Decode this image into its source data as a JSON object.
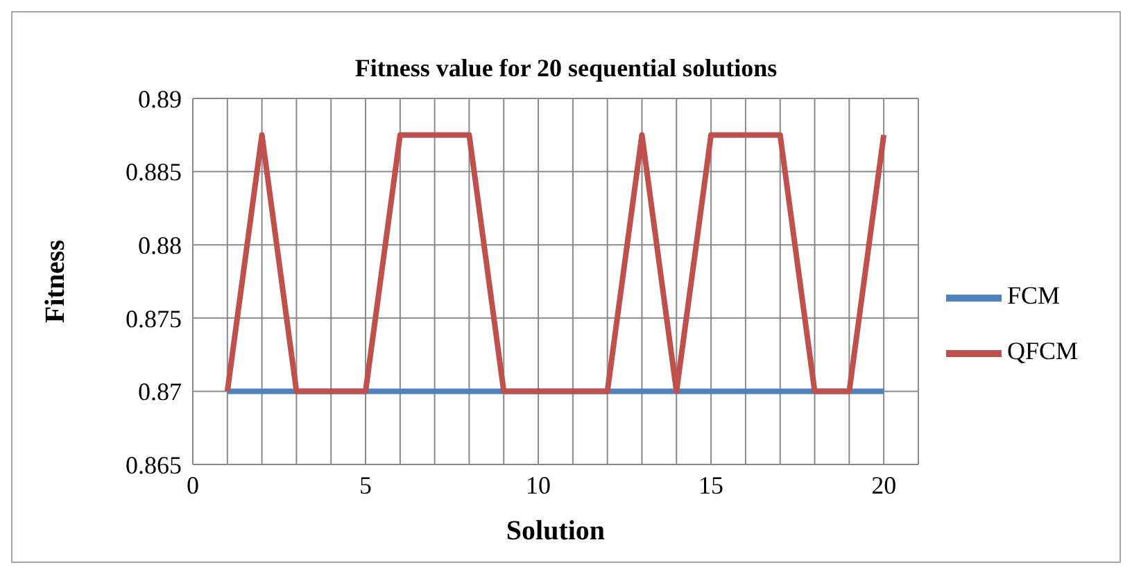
{
  "chart_data": {
    "type": "line",
    "title": "Fitness value for 20 sequential solutions",
    "xlabel": "Solution",
    "ylabel": "Fitness",
    "x": [
      1,
      2,
      3,
      4,
      5,
      6,
      7,
      8,
      9,
      10,
      11,
      12,
      13,
      14,
      15,
      16,
      17,
      18,
      19,
      20
    ],
    "series": [
      {
        "name": "FCM",
        "color": "#4f81bd",
        "values": [
          0.87,
          0.87,
          0.87,
          0.87,
          0.87,
          0.87,
          0.87,
          0.87,
          0.87,
          0.87,
          0.87,
          0.87,
          0.87,
          0.87,
          0.87,
          0.87,
          0.87,
          0.87,
          0.87,
          0.87
        ]
      },
      {
        "name": "QFCM",
        "color": "#c0504d",
        "values": [
          0.87,
          0.8875,
          0.87,
          0.87,
          0.87,
          0.8875,
          0.8875,
          0.8875,
          0.87,
          0.87,
          0.87,
          0.87,
          0.8875,
          0.87,
          0.8875,
          0.8875,
          0.8875,
          0.87,
          0.87,
          0.8875
        ]
      }
    ],
    "xlim": [
      0,
      21
    ],
    "xticks": [
      0,
      {
        "value": 1,
        "label": null
      },
      {
        "value": 2,
        "label": null
      },
      {
        "value": 3,
        "label": null
      },
      {
        "value": 4,
        "label": null
      },
      5,
      {
        "value": 6,
        "label": null
      },
      {
        "value": 7,
        "label": null
      },
      {
        "value": 8,
        "label": null
      },
      {
        "value": 9,
        "label": null
      },
      10,
      {
        "value": 11,
        "label": null
      },
      {
        "value": 12,
        "label": null
      },
      {
        "value": 13,
        "label": null
      },
      {
        "value": 14,
        "label": null
      },
      15,
      {
        "value": 16,
        "label": null
      },
      {
        "value": 17,
        "label": null
      },
      {
        "value": 18,
        "label": null
      },
      {
        "value": 19,
        "label": null
      },
      20,
      {
        "value": 21,
        "label": null
      }
    ],
    "ylim": [
      0.865,
      0.89
    ],
    "yticks": [
      0.865,
      0.87,
      0.875,
      0.88,
      0.885,
      0.89
    ],
    "grid": true,
    "legend": "right",
    "marker": "none",
    "line_style": "solid"
  }
}
